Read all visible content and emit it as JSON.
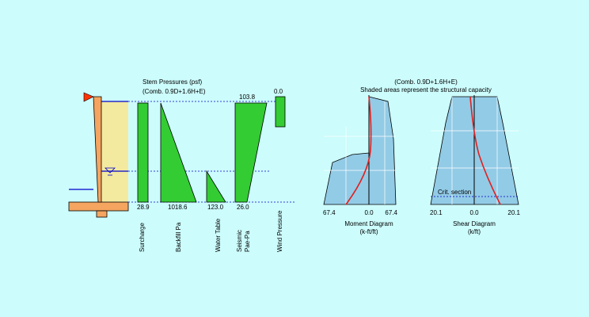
{
  "stem": {
    "title": "Stem Pressures (psf)",
    "combo": "(Comb. 0.9D+1.6H+E)",
    "columns": [
      {
        "label": "Surcharge",
        "bottom_value": "28.9"
      },
      {
        "label": "Backfill Pa",
        "bottom_value": "1018.6"
      },
      {
        "label": "Water Table",
        "bottom_value": "123.0"
      },
      {
        "label": "Seismic Pae-Pa",
        "top_value": "103.8",
        "bottom_value": "26.0"
      },
      {
        "label": "Wind Pressure",
        "top_value": "0.0"
      }
    ]
  },
  "capacity": {
    "combo": "(Comb. 0.9D+1.6H+E)",
    "note": "Shaded areas represent the structural capacity"
  },
  "moment": {
    "left_value": "67.4",
    "center_value": "0.0",
    "right_value": "67.4",
    "title": "Moment Diagram",
    "units": "(k-ft/ft)"
  },
  "shear": {
    "left_value": "20.1",
    "center_value": "0.0",
    "right_value": "20.1",
    "title": "Shear Diagram",
    "units": "(k/ft)",
    "crit_label": "Crit. section"
  },
  "colors": {
    "background": "#ccfcfc",
    "pressure_fill": "#33cc33",
    "capacity_fill": "#92cbe6",
    "wall": "#f5a55f",
    "soil": "#f3eaa0",
    "water_line": "#0000cc",
    "demand_curve": "#e02020",
    "flag": "#ff3300"
  }
}
